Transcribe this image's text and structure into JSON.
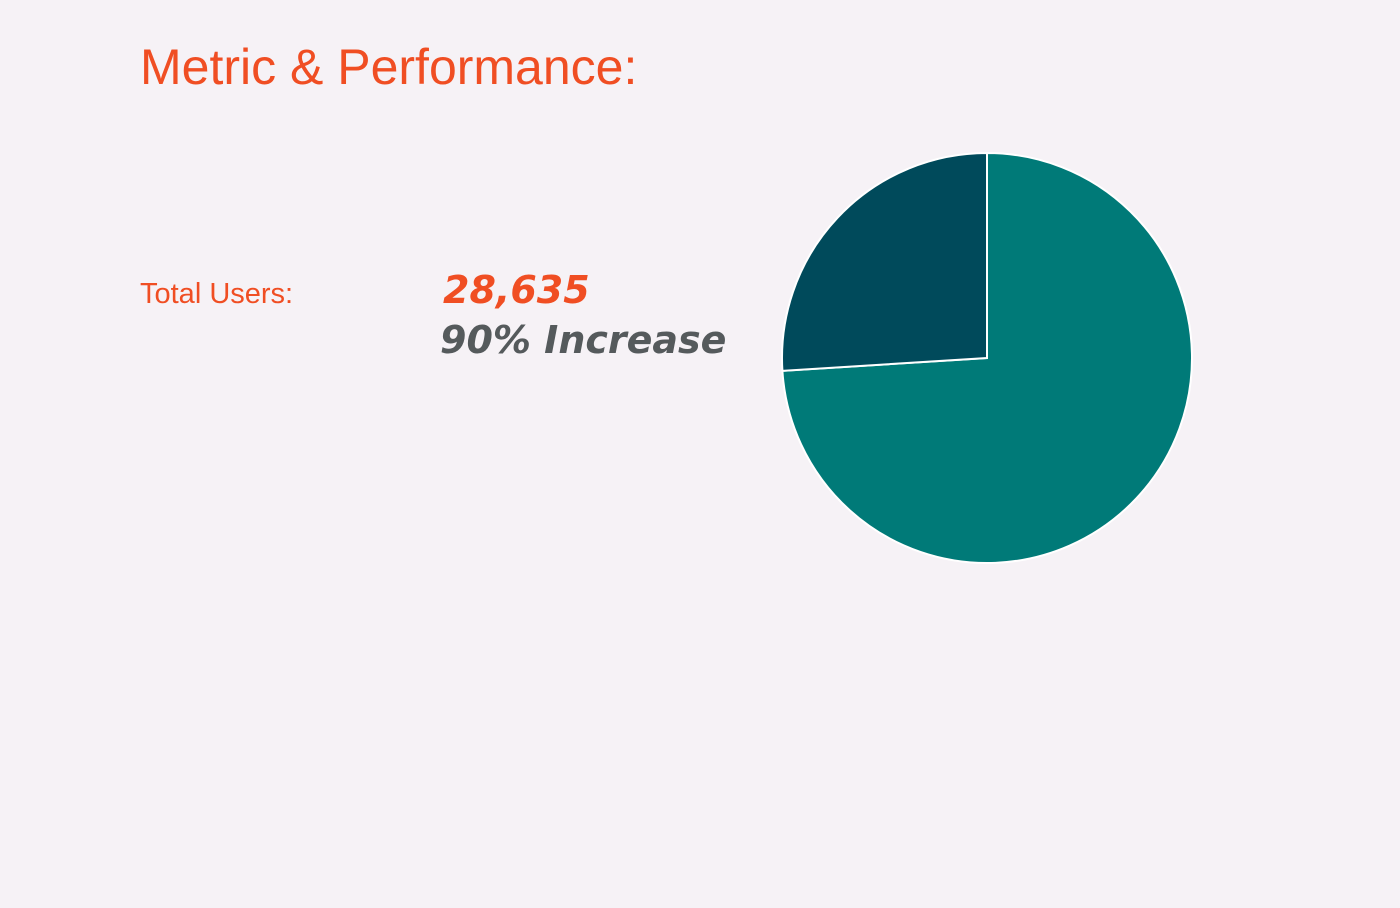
{
  "header": {
    "title": "Metric & Performance:"
  },
  "metric": {
    "label": "Total Users:",
    "value": "28,635",
    "change": "90% Increase"
  },
  "chart_data": {
    "type": "pie",
    "values": [
      74,
      26
    ],
    "colors": [
      "#007a78",
      "#004a5b"
    ]
  }
}
